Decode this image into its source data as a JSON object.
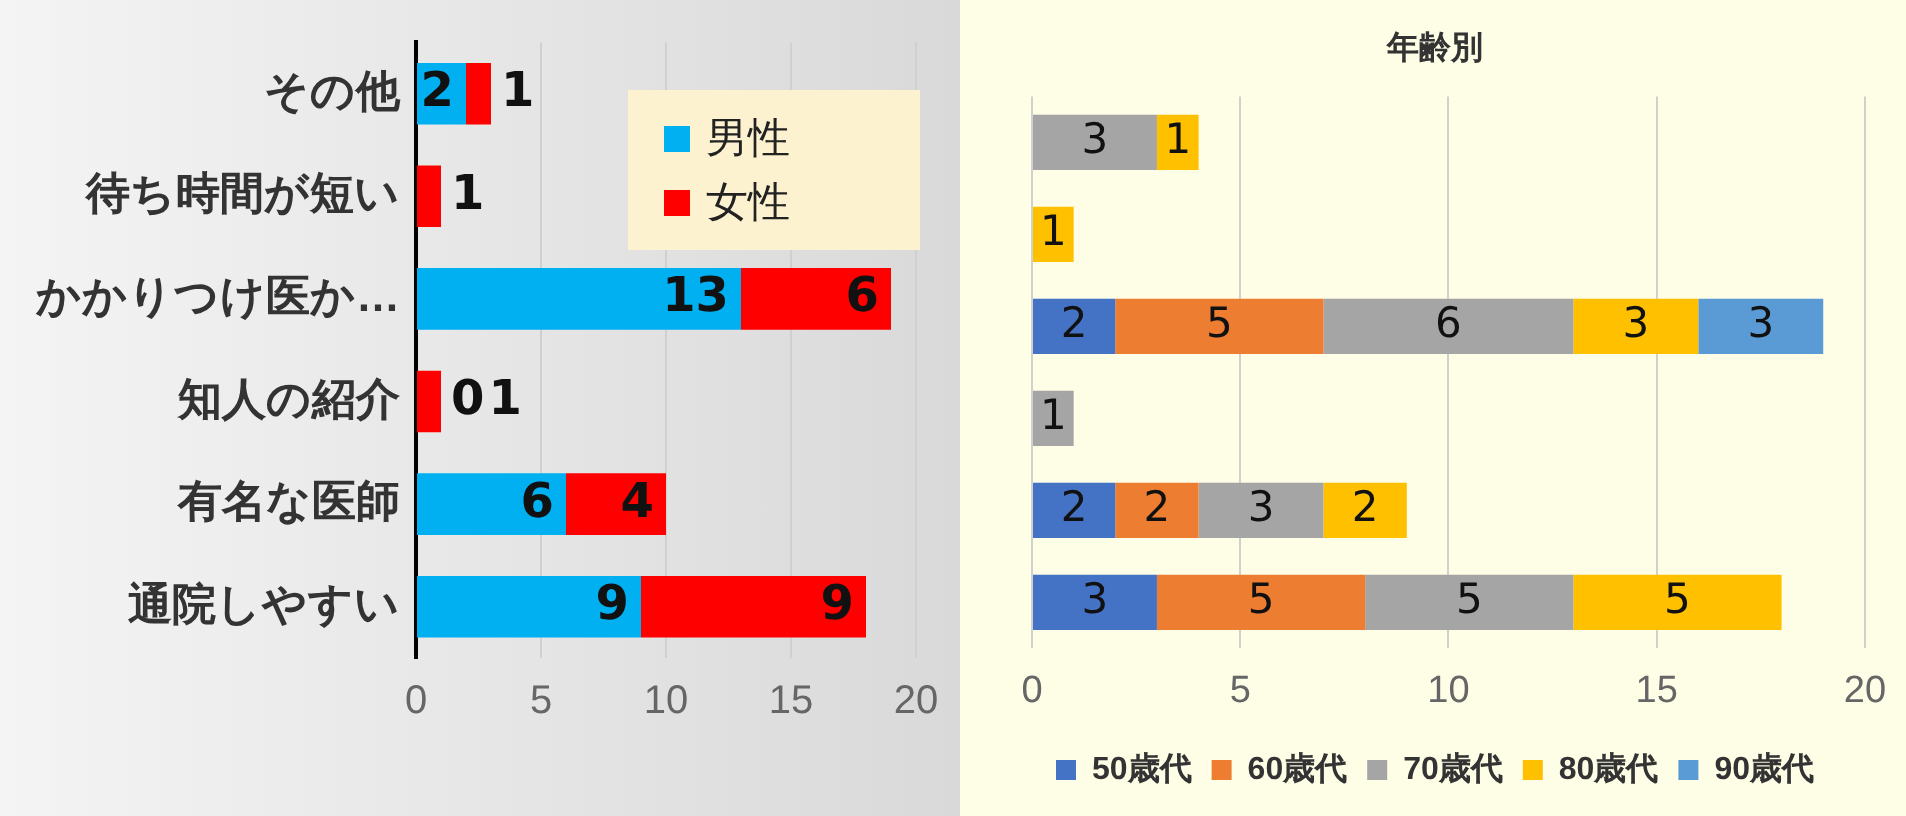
{
  "chart_data": [
    {
      "type": "bar",
      "orientation": "horizontal",
      "stacked": true,
      "categories": [
        "その他",
        "待ち時間が短い",
        "かかりつけ医か…",
        "知人の紹介",
        "有名な医師",
        "通院しやすい"
      ],
      "series": [
        {
          "name": "男性",
          "color": "#00b0f0",
          "values": [
            2,
            0,
            13,
            0,
            6,
            9
          ],
          "value_labels": [
            "2",
            null,
            "13",
            "0",
            "6",
            "9"
          ]
        },
        {
          "name": "女性",
          "color": "#ff0000",
          "values": [
            1,
            1,
            6,
            1,
            4,
            9
          ],
          "value_labels": [
            "1",
            "1",
            "6",
            "1",
            "4",
            "9"
          ]
        }
      ],
      "xlim": [
        0,
        20
      ],
      "xticks": [
        0,
        5,
        10,
        15,
        20
      ],
      "grid": "x",
      "legend": "top right"
    },
    {
      "type": "bar",
      "orientation": "horizontal",
      "stacked": true,
      "title": "年齢別",
      "categories": [
        null,
        null,
        null,
        null,
        null,
        null
      ],
      "series": [
        {
          "name": "50歳代",
          "color": "#4472c4",
          "values": [
            null,
            null,
            2,
            null,
            2,
            3
          ]
        },
        {
          "name": "60歳代",
          "color": "#ed7d31",
          "values": [
            null,
            null,
            5,
            null,
            2,
            5
          ]
        },
        {
          "name": "70歳代",
          "color": "#a5a5a5",
          "values": [
            3,
            null,
            6,
            1,
            3,
            5
          ]
        },
        {
          "name": "80歳代",
          "color": "#ffc000",
          "values": [
            1,
            1,
            3,
            null,
            2,
            5
          ]
        },
        {
          "name": "90歳代",
          "color": "#5b9bd5",
          "values": [
            null,
            null,
            3,
            null,
            null,
            null
          ]
        }
      ],
      "xlim": [
        0,
        20
      ],
      "xticks": [
        0,
        5,
        10,
        15,
        20
      ],
      "grid": "x",
      "legend": "bottom",
      "data_labels": true
    }
  ]
}
